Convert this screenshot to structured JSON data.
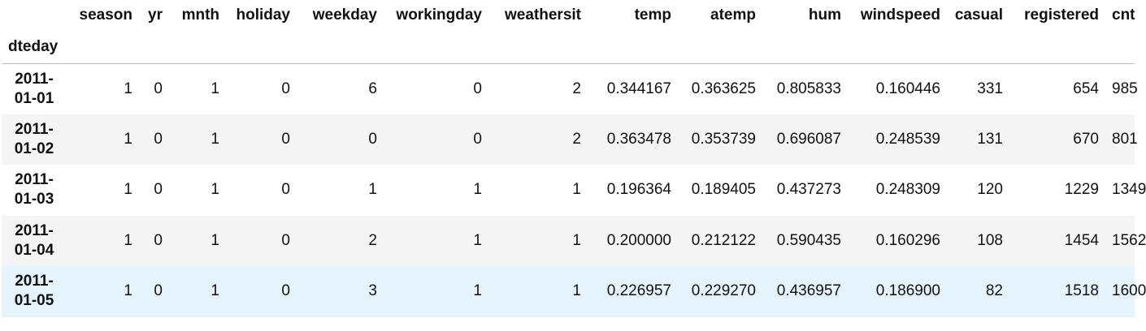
{
  "table": {
    "index_name": "dteday",
    "columns": [
      "season",
      "yr",
      "mnth",
      "holiday",
      "weekday",
      "workingday",
      "weathersit",
      "temp",
      "atemp",
      "hum",
      "windspeed",
      "casual",
      "registered",
      "cnt"
    ],
    "rows": [
      {
        "index_top": "2011-",
        "index_bottom": "01-01",
        "cells": [
          "1",
          "0",
          "1",
          "0",
          "6",
          "0",
          "2",
          "0.344167",
          "0.363625",
          "0.805833",
          "0.160446",
          "331",
          "654",
          "985"
        ]
      },
      {
        "index_top": "2011-",
        "index_bottom": "01-02",
        "cells": [
          "1",
          "0",
          "1",
          "0",
          "0",
          "0",
          "2",
          "0.363478",
          "0.353739",
          "0.696087",
          "0.248539",
          "131",
          "670",
          "801"
        ]
      },
      {
        "index_top": "2011-",
        "index_bottom": "01-03",
        "cells": [
          "1",
          "0",
          "1",
          "0",
          "1",
          "1",
          "1",
          "0.196364",
          "0.189405",
          "0.437273",
          "0.248309",
          "120",
          "1229",
          "1349"
        ]
      },
      {
        "index_top": "2011-",
        "index_bottom": "01-04",
        "cells": [
          "1",
          "0",
          "1",
          "0",
          "2",
          "1",
          "1",
          "0.200000",
          "0.212122",
          "0.590435",
          "0.160296",
          "108",
          "1454",
          "1562"
        ]
      },
      {
        "index_top": "2011-",
        "index_bottom": "01-05",
        "cells": [
          "1",
          "0",
          "1",
          "0",
          "3",
          "1",
          "1",
          "0.226957",
          "0.229270",
          "0.436957",
          "0.186900",
          "82",
          "1518",
          "1600"
        ]
      }
    ]
  },
  "colors": {
    "stripe": "#f5f5f5",
    "hover_row": "#e5f4fc",
    "header_rule": "#bdbdbd"
  }
}
